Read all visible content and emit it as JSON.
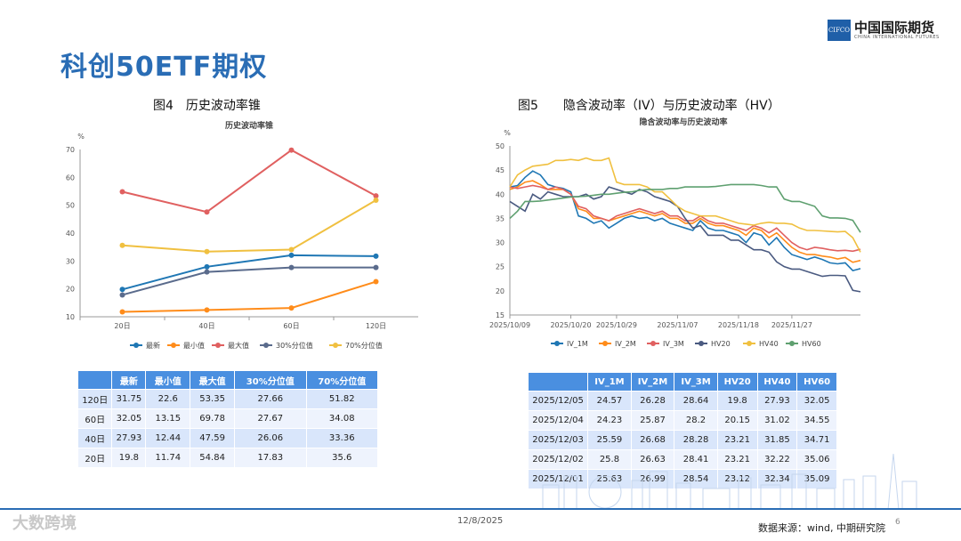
{
  "page": {
    "title": "科创50ETF期权",
    "logo_short": "CIFCO",
    "logo_cn": "中国国际期货",
    "logo_en": "CHINA INTERNATIONAL FUTURES",
    "footer_date": "12/8/2025",
    "footer_source": "数据来源：wind, 中期研究院",
    "footer_page": "6",
    "watermark": "大数跨境"
  },
  "fig4": {
    "caption": "图4　历史波动率锥",
    "table_headers": [
      "",
      "最新",
      "最小值",
      "最大值",
      "30%分位值",
      "70%分位值"
    ]
  },
  "fig5": {
    "caption": "图5　　隐含波动率（IV）与历史波动率（HV）",
    "table_headers": [
      "",
      "IV_1M",
      "IV_2M",
      "IV_3M",
      "HV20",
      "HV40",
      "HV60"
    ]
  },
  "chart_data": [
    {
      "type": "line",
      "title": "历史波动率锥",
      "ylabel": "%",
      "ylim": [
        10,
        70
      ],
      "yticks": [
        10,
        20,
        30,
        40,
        50,
        60,
        70
      ],
      "categories": [
        "20日",
        "40日",
        "60日",
        "120日"
      ],
      "series": [
        {
          "name": "最新",
          "color": "#1f77b4",
          "values": [
            19.8,
            27.93,
            32.05,
            31.75
          ]
        },
        {
          "name": "最小值",
          "color": "#ff8c1a",
          "values": [
            11.74,
            12.44,
            13.15,
            22.6
          ]
        },
        {
          "name": "最大值",
          "color": "#e06060",
          "values": [
            54.84,
            47.59,
            69.78,
            53.35
          ]
        },
        {
          "name": "30%分位值",
          "color": "#5a6b8c",
          "values": [
            17.83,
            26.06,
            27.67,
            27.66
          ]
        },
        {
          "name": "70%分位值",
          "color": "#f0c040",
          "values": [
            35.6,
            33.36,
            34.08,
            51.82
          ]
        }
      ],
      "table_rows": [
        [
          "120日",
          "31.75",
          "22.6",
          "53.35",
          "27.66",
          "51.82"
        ],
        [
          "60日",
          "32.05",
          "13.15",
          "69.78",
          "27.67",
          "34.08"
        ],
        [
          "40日",
          "27.93",
          "12.44",
          "47.59",
          "26.06",
          "33.36"
        ],
        [
          "20日",
          "19.8",
          "11.74",
          "54.84",
          "17.83",
          "35.6"
        ]
      ]
    },
    {
      "type": "line",
      "title": "隐含波动率与历史波动率",
      "ylabel": "%",
      "ylim": [
        15,
        50
      ],
      "yticks": [
        15,
        20,
        25,
        30,
        35,
        40,
        45,
        50
      ],
      "xticks": [
        "2025/10/09",
        "2025/10/20",
        "2025/10/29",
        "2025/11/07",
        "2025/11/18",
        "2025/11/27"
      ],
      "series": [
        {
          "name": "IV_1M",
          "color": "#1f77b4",
          "values": [
            41.5,
            41.8,
            43.5,
            44.8,
            44.0,
            42.0,
            41.5,
            41.2,
            40.5,
            35.5,
            35.0,
            34.0,
            34.5,
            33.0,
            34.0,
            35.0,
            35.5,
            35.0,
            35.2,
            34.5,
            35.0,
            34.0,
            33.5,
            33.0,
            32.5,
            34.5,
            33.0,
            32.5,
            32.5,
            32.0,
            31.5,
            30.0,
            32.0,
            31.5,
            29.5,
            31.0,
            29.0,
            27.5,
            27.0,
            26.5,
            27.0,
            26.5,
            25.8,
            25.6,
            25.8,
            24.2,
            24.6
          ]
        },
        {
          "name": "IV_2M",
          "color": "#ff8c1a",
          "values": [
            41.0,
            41.5,
            42.5,
            42.8,
            42.0,
            41.0,
            41.0,
            41.0,
            40.0,
            37.0,
            36.5,
            35.0,
            35.0,
            34.5,
            35.0,
            35.5,
            36.0,
            36.5,
            36.0,
            35.5,
            36.0,
            35.0,
            35.0,
            34.0,
            34.0,
            35.0,
            34.0,
            33.5,
            33.5,
            33.0,
            32.5,
            31.5,
            33.0,
            32.5,
            31.0,
            32.0,
            30.5,
            29.0,
            28.0,
            27.5,
            27.5,
            27.2,
            27.0,
            26.6,
            26.9,
            25.9,
            26.3
          ]
        },
        {
          "name": "IV_3M",
          "color": "#e06060",
          "values": [
            41.5,
            41.2,
            41.5,
            41.8,
            41.5,
            41.0,
            41.5,
            41.0,
            40.0,
            37.5,
            37.0,
            35.5,
            35.0,
            34.5,
            35.5,
            36.0,
            36.5,
            37.0,
            36.5,
            36.0,
            36.5,
            35.5,
            35.5,
            34.5,
            34.5,
            35.5,
            34.5,
            34.0,
            34.0,
            33.5,
            33.0,
            32.5,
            33.5,
            33.0,
            32.0,
            33.0,
            31.5,
            30.0,
            29.0,
            28.5,
            29.0,
            28.8,
            28.5,
            28.3,
            28.4,
            28.2,
            28.6
          ]
        },
        {
          "name": "HV20",
          "color": "#4a5a80",
          "values": [
            38.5,
            37.5,
            36.5,
            40.0,
            39.0,
            40.5,
            40.0,
            39.5,
            39.5,
            39.5,
            40.0,
            39.0,
            39.5,
            41.5,
            41.0,
            40.5,
            40.0,
            41.0,
            40.5,
            39.5,
            39.0,
            38.5,
            37.5,
            35.0,
            33.0,
            33.5,
            31.5,
            31.5,
            31.5,
            30.5,
            30.5,
            29.5,
            28.5,
            28.5,
            28.0,
            26.0,
            25.0,
            24.5,
            24.5,
            24.0,
            23.5,
            23.0,
            23.2,
            23.2,
            23.1,
            20.1,
            19.8
          ]
        },
        {
          "name": "HV40",
          "color": "#f0c040",
          "values": [
            41.5,
            44.0,
            45.0,
            45.8,
            46.0,
            46.2,
            47.0,
            47.0,
            47.2,
            47.0,
            47.5,
            47.0,
            47.0,
            47.5,
            42.5,
            42.0,
            42.0,
            42.0,
            41.5,
            40.5,
            40.5,
            39.0,
            37.5,
            36.5,
            36.0,
            35.5,
            35.5,
            35.5,
            35.0,
            34.5,
            34.0,
            33.8,
            33.6,
            34.0,
            34.2,
            34.0,
            34.0,
            33.8,
            33.0,
            32.5,
            32.5,
            32.4,
            32.3,
            32.2,
            32.3,
            31.0,
            28.0
          ]
        },
        {
          "name": "HV60",
          "color": "#5fa070",
          "values": [
            35.0,
            36.5,
            38.5,
            38.5,
            38.6,
            38.8,
            39.0,
            39.2,
            39.4,
            39.5,
            39.6,
            39.8,
            40.0,
            40.0,
            40.2,
            40.4,
            40.5,
            40.8,
            41.0,
            41.0,
            41.0,
            41.2,
            41.2,
            41.5,
            41.5,
            41.5,
            41.5,
            41.6,
            41.8,
            42.0,
            42.0,
            42.0,
            42.0,
            41.8,
            41.5,
            41.5,
            39.0,
            38.5,
            38.5,
            38.0,
            37.5,
            35.5,
            35.1,
            35.1,
            35.0,
            34.6,
            32.1
          ]
        }
      ],
      "table_rows": [
        [
          "2025/12/05",
          "24.57",
          "26.28",
          "28.64",
          "19.8",
          "27.93",
          "32.05"
        ],
        [
          "2025/12/04",
          "24.23",
          "25.87",
          "28.2",
          "20.15",
          "31.02",
          "34.55"
        ],
        [
          "2025/12/03",
          "25.59",
          "26.68",
          "28.28",
          "23.21",
          "31.85",
          "34.71"
        ],
        [
          "2025/12/02",
          "25.8",
          "26.63",
          "28.41",
          "23.21",
          "32.22",
          "35.06"
        ],
        [
          "2025/12/01",
          "25.63",
          "26.99",
          "28.54",
          "23.12",
          "32.34",
          "35.09"
        ]
      ]
    }
  ]
}
